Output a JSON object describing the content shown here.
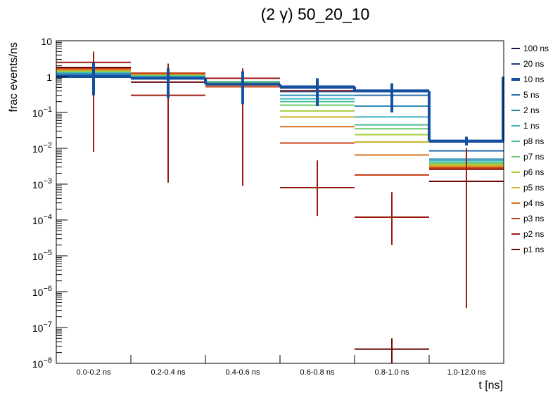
{
  "chart_data": {
    "type": "step-histogram",
    "title": "(2 γ) 50_20_10",
    "xlabel": "t [ns]",
    "ylabel": "frac events/ns",
    "yscale": "log",
    "ylim": [
      1e-08,
      10
    ],
    "categories": [
      "0.0-0.2 ns",
      "0.2-0.4 ns",
      "0.4-0.6 ns",
      "0.6-0.8 ns",
      "0.8-1.0 ns",
      "1.0-12.0 ns"
    ],
    "y_ticks": [
      {
        "value": 10,
        "mant": "10",
        "exp": ""
      },
      {
        "value": 1,
        "mant": "1",
        "exp": ""
      },
      {
        "value": 0.1,
        "mant": "10",
        "exp": "−1"
      },
      {
        "value": 0.01,
        "mant": "10",
        "exp": "−2"
      },
      {
        "value": 0.001,
        "mant": "10",
        "exp": "−3"
      },
      {
        "value": 0.0001,
        "mant": "10",
        "exp": "−4"
      },
      {
        "value": 1e-05,
        "mant": "10",
        "exp": "−5"
      },
      {
        "value": 1e-06,
        "mant": "10",
        "exp": "−6"
      },
      {
        "value": 1e-07,
        "mant": "10",
        "exp": "−7"
      },
      {
        "value": 1e-08,
        "mant": "10",
        "exp": "−8"
      }
    ],
    "legend_position": "right",
    "series": [
      {
        "name": "100 ns",
        "color": "#0f1a5e",
        "values": [
          1.05,
          0.92,
          0.62,
          0.5,
          0.4,
          0.016
        ],
        "errors": null,
        "highlight": false
      },
      {
        "name": "20 ns",
        "color": "#1f3a86",
        "values": [
          1.05,
          0.9,
          0.6,
          0.48,
          0.38,
          0.015
        ],
        "errors": null,
        "highlight": false
      },
      {
        "name": "10 ns",
        "color": "#1450a0",
        "values": [
          1.0,
          0.9,
          0.62,
          0.52,
          0.4,
          0.016
        ],
        "errors": [
          [
            0.3,
            2.5
          ],
          [
            0.25,
            1.7
          ],
          [
            0.17,
            1.4
          ],
          [
            0.15,
            0.9
          ],
          [
            0.1,
            0.65
          ],
          [
            0.012,
            0.021
          ]
        ],
        "highlight": true
      },
      {
        "name": "5 ns",
        "color": "#2a6fb0",
        "values": [
          1.1,
          0.95,
          0.7,
          0.38,
          0.3,
          0.0085
        ],
        "errors": null,
        "highlight": false
      },
      {
        "name": "2 ns",
        "color": "#2e8cb8",
        "values": [
          1.2,
          1.0,
          0.72,
          0.3,
          0.15,
          0.005
        ],
        "errors": null,
        "highlight": false
      },
      {
        "name": "1 ns",
        "color": "#3bb2c6",
        "values": [
          1.3,
          1.05,
          0.72,
          0.24,
          0.075,
          0.0045
        ],
        "errors": null,
        "highlight": false
      },
      {
        "name": "p8 ns",
        "color": "#4cbf9a",
        "values": [
          1.35,
          1.1,
          0.7,
          0.2,
          0.045,
          0.004
        ],
        "errors": null,
        "highlight": false
      },
      {
        "name": "p7 ns",
        "color": "#6cc96a",
        "values": [
          1.4,
          1.1,
          0.68,
          0.16,
          0.035,
          0.0038
        ],
        "errors": null,
        "highlight": false
      },
      {
        "name": "p6 ns",
        "color": "#a8cf3e",
        "values": [
          1.45,
          1.15,
          0.66,
          0.11,
          0.024,
          0.0035
        ],
        "errors": null,
        "highlight": false
      },
      {
        "name": "p5 ns",
        "color": "#d0b22a",
        "values": [
          1.5,
          1.2,
          0.62,
          0.075,
          0.015,
          0.0033
        ],
        "errors": null,
        "highlight": false
      },
      {
        "name": "p4 ns",
        "color": "#d8701e",
        "values": [
          1.6,
          1.2,
          0.58,
          0.04,
          0.0065,
          0.003
        ],
        "errors": null,
        "highlight": false
      },
      {
        "name": "p3 ns",
        "color": "#c8401a",
        "values": [
          1.7,
          1.25,
          0.52,
          0.014,
          0.0018,
          0.0028
        ],
        "errors": null,
        "highlight": false
      },
      {
        "name": "p2 ns",
        "color": "#9a1d10",
        "values": [
          2.5,
          0.3,
          0.9,
          0.0008,
          0.00012,
          0.0026
        ],
        "errors": [
          [
            0.008,
            5.0
          ],
          [
            0.0011,
            2.3
          ],
          [
            0.0009,
            1.7
          ],
          [
            0.00013,
            0.0046
          ],
          [
            2e-05,
            0.0006
          ],
          [
            3.5e-07,
            0.01
          ]
        ],
        "highlight": false
      },
      {
        "name": "p1 ns",
        "color": "#6a0a0a",
        "values": [
          1.8,
          0.7,
          0.6,
          0.4,
          2.5e-08,
          0.0012
        ],
        "errors": [
          null,
          null,
          null,
          null,
          [
            1e-08,
            5e-08
          ],
          null
        ],
        "highlight": false
      }
    ]
  }
}
